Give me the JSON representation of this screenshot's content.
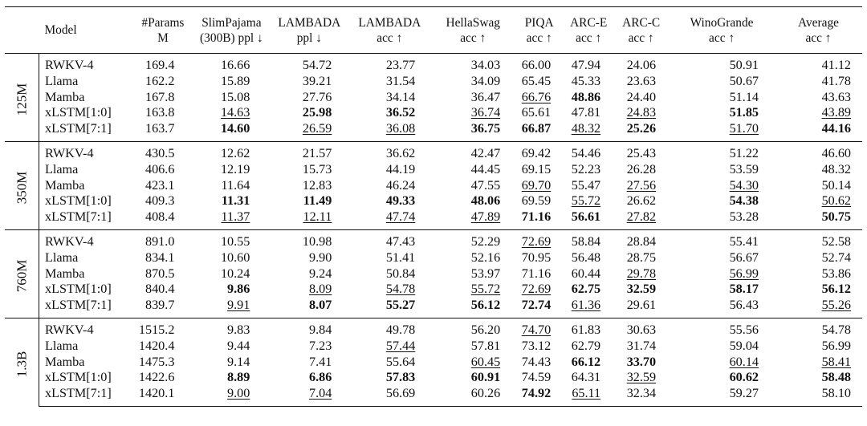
{
  "table": {
    "columns": [
      {
        "key": "model",
        "line1": "Model",
        "line2": ""
      },
      {
        "key": "params",
        "line1": "#Params",
        "line2": "M"
      },
      {
        "key": "slimpajama",
        "line1": "SlimPajama",
        "line2": "(300B) ppl ↓"
      },
      {
        "key": "lambada_ppl",
        "line1": "LAMBADA",
        "line2": "ppl ↓"
      },
      {
        "key": "lambada_acc",
        "line1": "LAMBADA",
        "line2": "acc ↑"
      },
      {
        "key": "hellaswag",
        "line1": "HellaSwag",
        "line2": "acc ↑"
      },
      {
        "key": "piqa",
        "line1": "PIQA",
        "line2": "acc ↑"
      },
      {
        "key": "arce",
        "line1": "ARC-E",
        "line2": "acc ↑"
      },
      {
        "key": "arcc",
        "line1": "ARC-C",
        "line2": "acc ↑"
      },
      {
        "key": "winogrande",
        "line1": "WinoGrande",
        "line2": "acc ↑"
      },
      {
        "key": "average",
        "line1": "Average",
        "line2": "acc ↑"
      }
    ],
    "groups": [
      {
        "label": "125M",
        "rows": [
          {
            "model": "RWKV-4",
            "cells": [
              {
                "v": "169.4"
              },
              {
                "v": "16.66"
              },
              {
                "v": "54.72"
              },
              {
                "v": "23.77"
              },
              {
                "v": "34.03"
              },
              {
                "v": "66.00"
              },
              {
                "v": "47.94"
              },
              {
                "v": "24.06"
              },
              {
                "v": "50.91"
              },
              {
                "v": "41.12"
              }
            ]
          },
          {
            "model": "Llama",
            "cells": [
              {
                "v": "162.2"
              },
              {
                "v": "15.89"
              },
              {
                "v": "39.21"
              },
              {
                "v": "31.54"
              },
              {
                "v": "34.09"
              },
              {
                "v": "65.45"
              },
              {
                "v": "45.33"
              },
              {
                "v": "23.63"
              },
              {
                "v": "50.67"
              },
              {
                "v": "41.78"
              }
            ]
          },
          {
            "model": "Mamba",
            "cells": [
              {
                "v": "167.8"
              },
              {
                "v": "15.08"
              },
              {
                "v": "27.76"
              },
              {
                "v": "34.14"
              },
              {
                "v": "36.47"
              },
              {
                "v": "66.76",
                "s": "u"
              },
              {
                "v": "48.86",
                "s": "b"
              },
              {
                "v": "24.40"
              },
              {
                "v": "51.14"
              },
              {
                "v": "43.63"
              }
            ]
          },
          {
            "model": "xLSTM[1:0]",
            "cells": [
              {
                "v": "163.8"
              },
              {
                "v": "14.63",
                "s": "u"
              },
              {
                "v": "25.98",
                "s": "b"
              },
              {
                "v": "36.52",
                "s": "b"
              },
              {
                "v": "36.74",
                "s": "u"
              },
              {
                "v": "65.61"
              },
              {
                "v": "47.81"
              },
              {
                "v": "24.83",
                "s": "u"
              },
              {
                "v": "51.85",
                "s": "b"
              },
              {
                "v": "43.89",
                "s": "u"
              }
            ]
          },
          {
            "model": "xLSTM[7:1]",
            "cells": [
              {
                "v": "163.7"
              },
              {
                "v": "14.60",
                "s": "b"
              },
              {
                "v": "26.59",
                "s": "u"
              },
              {
                "v": "36.08",
                "s": "u"
              },
              {
                "v": "36.75",
                "s": "b"
              },
              {
                "v": "66.87",
                "s": "b"
              },
              {
                "v": "48.32",
                "s": "u"
              },
              {
                "v": "25.26",
                "s": "b"
              },
              {
                "v": "51.70",
                "s": "u"
              },
              {
                "v": "44.16",
                "s": "b"
              }
            ]
          }
        ]
      },
      {
        "label": "350M",
        "rows": [
          {
            "model": "RWKV-4",
            "cells": [
              {
                "v": "430.5"
              },
              {
                "v": "12.62"
              },
              {
                "v": "21.57"
              },
              {
                "v": "36.62"
              },
              {
                "v": "42.47"
              },
              {
                "v": "69.42"
              },
              {
                "v": "54.46"
              },
              {
                "v": "25.43"
              },
              {
                "v": "51.22"
              },
              {
                "v": "46.60"
              }
            ]
          },
          {
            "model": "Llama",
            "cells": [
              {
                "v": "406.6"
              },
              {
                "v": "12.19"
              },
              {
                "v": "15.73"
              },
              {
                "v": "44.19"
              },
              {
                "v": "44.45"
              },
              {
                "v": "69.15"
              },
              {
                "v": "52.23"
              },
              {
                "v": "26.28"
              },
              {
                "v": "53.59"
              },
              {
                "v": "48.32"
              }
            ]
          },
          {
            "model": "Mamba",
            "cells": [
              {
                "v": "423.1"
              },
              {
                "v": "11.64"
              },
              {
                "v": "12.83"
              },
              {
                "v": "46.24"
              },
              {
                "v": "47.55"
              },
              {
                "v": "69.70",
                "s": "u"
              },
              {
                "v": "55.47"
              },
              {
                "v": "27.56",
                "s": "u"
              },
              {
                "v": "54.30",
                "s": "u"
              },
              {
                "v": "50.14"
              }
            ]
          },
          {
            "model": "xLSTM[1:0]",
            "cells": [
              {
                "v": "409.3"
              },
              {
                "v": "11.31",
                "s": "b"
              },
              {
                "v": "11.49",
                "s": "b"
              },
              {
                "v": "49.33",
                "s": "b"
              },
              {
                "v": "48.06",
                "s": "b"
              },
              {
                "v": "69.59"
              },
              {
                "v": "55.72",
                "s": "u"
              },
              {
                "v": "26.62"
              },
              {
                "v": "54.38",
                "s": "b"
              },
              {
                "v": "50.62",
                "s": "u"
              }
            ]
          },
          {
            "model": "xLSTM[7:1]",
            "cells": [
              {
                "v": "408.4"
              },
              {
                "v": "11.37",
                "s": "u"
              },
              {
                "v": "12.11",
                "s": "u"
              },
              {
                "v": "47.74",
                "s": "u"
              },
              {
                "v": "47.89",
                "s": "u"
              },
              {
                "v": "71.16",
                "s": "b"
              },
              {
                "v": "56.61",
                "s": "b"
              },
              {
                "v": "27.82",
                "s": "u"
              },
              {
                "v": "53.28"
              },
              {
                "v": "50.75",
                "s": "b"
              }
            ]
          }
        ]
      },
      {
        "label": "760M",
        "rows": [
          {
            "model": "RWKV-4",
            "cells": [
              {
                "v": "891.0"
              },
              {
                "v": "10.55"
              },
              {
                "v": "10.98"
              },
              {
                "v": "47.43"
              },
              {
                "v": "52.29"
              },
              {
                "v": "72.69",
                "s": "u"
              },
              {
                "v": "58.84"
              },
              {
                "v": "28.84"
              },
              {
                "v": "55.41"
              },
              {
                "v": "52.58"
              }
            ]
          },
          {
            "model": "Llama",
            "cells": [
              {
                "v": "834.1"
              },
              {
                "v": "10.60"
              },
              {
                "v": "9.90"
              },
              {
                "v": "51.41"
              },
              {
                "v": "52.16"
              },
              {
                "v": "70.95"
              },
              {
                "v": "56.48"
              },
              {
                "v": "28.75"
              },
              {
                "v": "56.67"
              },
              {
                "v": "52.74"
              }
            ]
          },
          {
            "model": "Mamba",
            "cells": [
              {
                "v": "870.5"
              },
              {
                "v": "10.24"
              },
              {
                "v": "9.24"
              },
              {
                "v": "50.84"
              },
              {
                "v": "53.97"
              },
              {
                "v": "71.16"
              },
              {
                "v": "60.44"
              },
              {
                "v": "29.78",
                "s": "u"
              },
              {
                "v": "56.99",
                "s": "u"
              },
              {
                "v": "53.86"
              }
            ]
          },
          {
            "model": "xLSTM[1:0]",
            "cells": [
              {
                "v": "840.4"
              },
              {
                "v": "9.86",
                "s": "b"
              },
              {
                "v": "8.09",
                "s": "u"
              },
              {
                "v": "54.78",
                "s": "u"
              },
              {
                "v": "55.72",
                "s": "u"
              },
              {
                "v": "72.69",
                "s": "u"
              },
              {
                "v": "62.75",
                "s": "b"
              },
              {
                "v": "32.59",
                "s": "b"
              },
              {
                "v": "58.17",
                "s": "b"
              },
              {
                "v": "56.12",
                "s": "b"
              }
            ]
          },
          {
            "model": "xLSTM[7:1]",
            "cells": [
              {
                "v": "839.7"
              },
              {
                "v": "9.91",
                "s": "u"
              },
              {
                "v": "8.07",
                "s": "b"
              },
              {
                "v": "55.27",
                "s": "b"
              },
              {
                "v": "56.12",
                "s": "b"
              },
              {
                "v": "72.74",
                "s": "b"
              },
              {
                "v": "61.36",
                "s": "u"
              },
              {
                "v": "29.61"
              },
              {
                "v": "56.43"
              },
              {
                "v": "55.26",
                "s": "u"
              }
            ]
          }
        ]
      },
      {
        "label": "1.3B",
        "rows": [
          {
            "model": "RWKV-4",
            "cells": [
              {
                "v": "1515.2"
              },
              {
                "v": "9.83"
              },
              {
                "v": "9.84"
              },
              {
                "v": "49.78"
              },
              {
                "v": "56.20"
              },
              {
                "v": "74.70",
                "s": "u"
              },
              {
                "v": "61.83"
              },
              {
                "v": "30.63"
              },
              {
                "v": "55.56"
              },
              {
                "v": "54.78"
              }
            ]
          },
          {
            "model": "Llama",
            "cells": [
              {
                "v": "1420.4"
              },
              {
                "v": "9.44"
              },
              {
                "v": "7.23"
              },
              {
                "v": "57.44",
                "s": "u"
              },
              {
                "v": "57.81"
              },
              {
                "v": "73.12"
              },
              {
                "v": "62.79"
              },
              {
                "v": "31.74"
              },
              {
                "v": "59.04"
              },
              {
                "v": "56.99"
              }
            ]
          },
          {
            "model": "Mamba",
            "cells": [
              {
                "v": "1475.3"
              },
              {
                "v": "9.14"
              },
              {
                "v": "7.41"
              },
              {
                "v": "55.64"
              },
              {
                "v": "60.45",
                "s": "u"
              },
              {
                "v": "74.43"
              },
              {
                "v": "66.12",
                "s": "b"
              },
              {
                "v": "33.70",
                "s": "b"
              },
              {
                "v": "60.14",
                "s": "u"
              },
              {
                "v": "58.41",
                "s": "u"
              }
            ]
          },
          {
            "model": "xLSTM[1:0]",
            "cells": [
              {
                "v": "1422.6"
              },
              {
                "v": "8.89",
                "s": "b"
              },
              {
                "v": "6.86",
                "s": "b"
              },
              {
                "v": "57.83",
                "s": "b"
              },
              {
                "v": "60.91",
                "s": "b"
              },
              {
                "v": "74.59"
              },
              {
                "v": "64.31"
              },
              {
                "v": "32.59",
                "s": "u"
              },
              {
                "v": "60.62",
                "s": "b"
              },
              {
                "v": "58.48",
                "s": "b"
              }
            ]
          },
          {
            "model": "xLSTM[7:1]",
            "cells": [
              {
                "v": "1420.1"
              },
              {
                "v": "9.00",
                "s": "u"
              },
              {
                "v": "7.04",
                "s": "u"
              },
              {
                "v": "56.69"
              },
              {
                "v": "60.26"
              },
              {
                "v": "74.92",
                "s": "b"
              },
              {
                "v": "65.11",
                "s": "u"
              },
              {
                "v": "32.34"
              },
              {
                "v": "59.27"
              },
              {
                "v": "58.10"
              }
            ]
          }
        ]
      }
    ]
  }
}
